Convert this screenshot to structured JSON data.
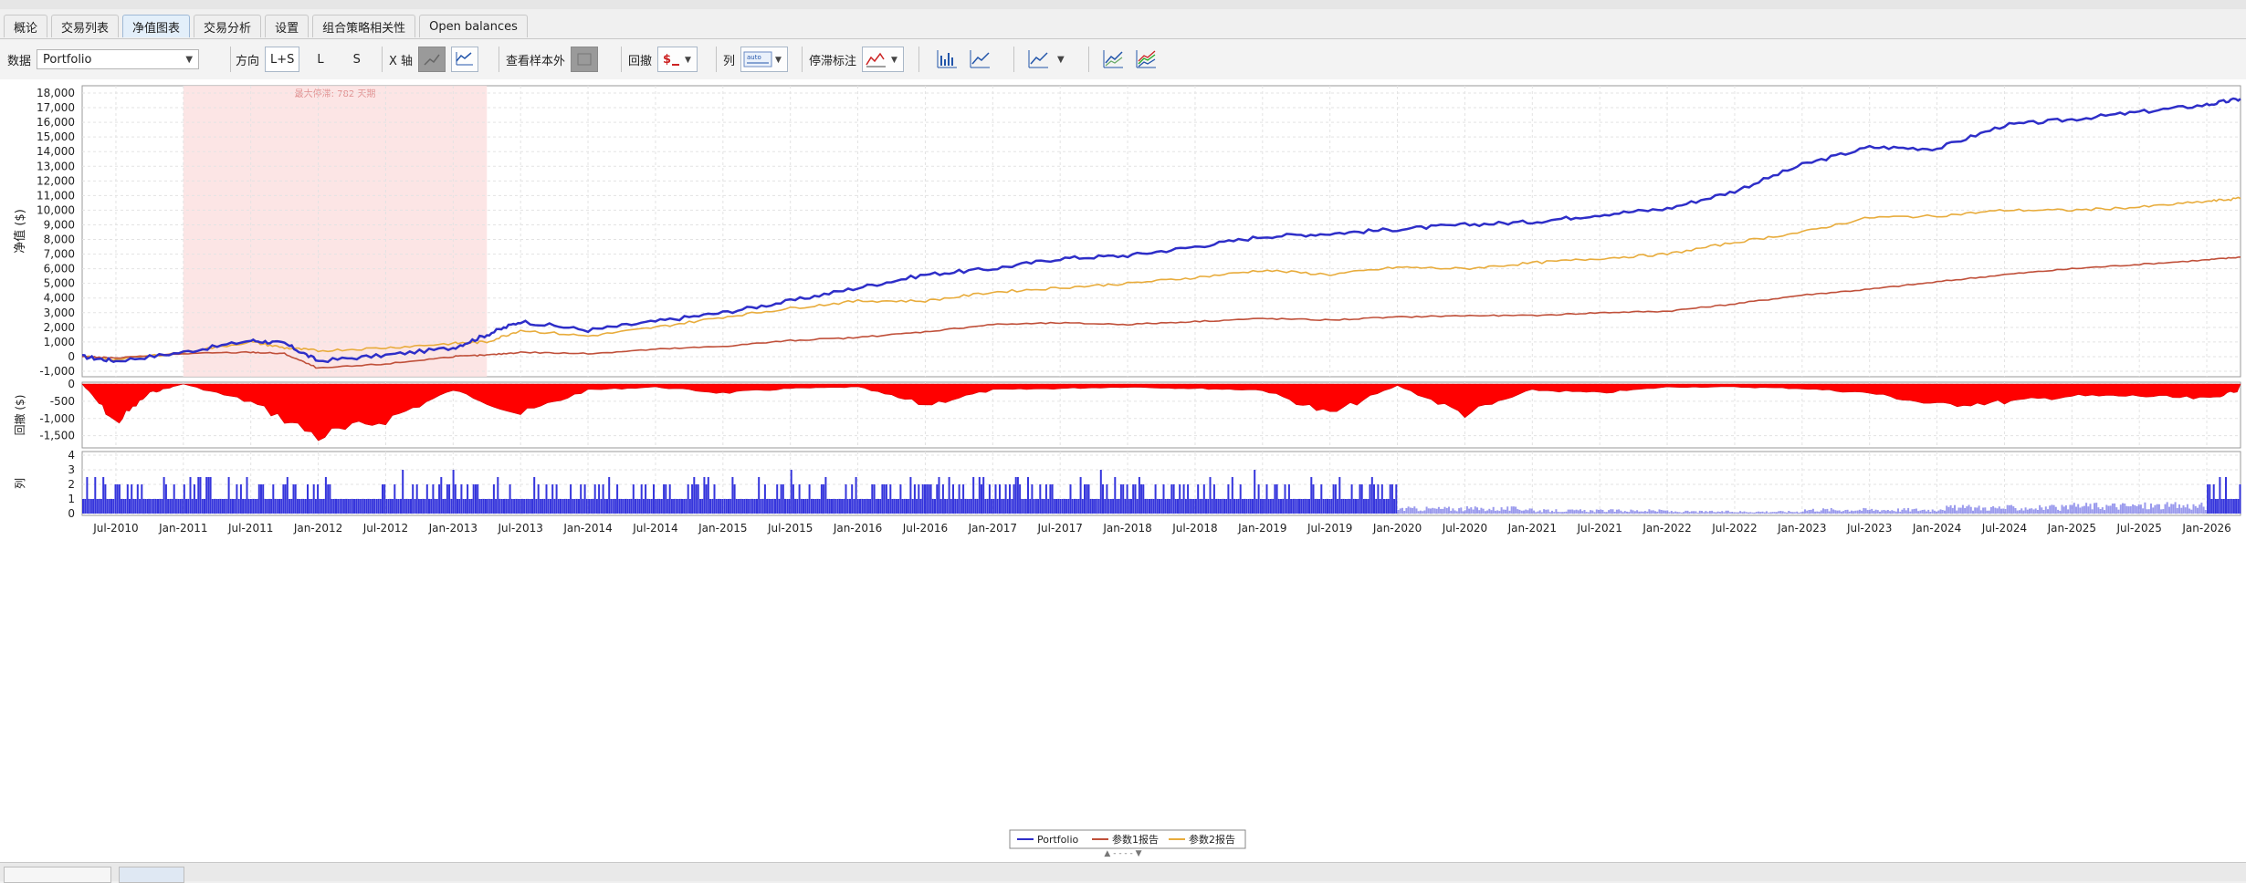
{
  "tabs": [
    {
      "label": "概论",
      "active": false
    },
    {
      "label": "交易列表",
      "active": false
    },
    {
      "label": "净值图表",
      "active": true
    },
    {
      "label": "交易分析",
      "active": false
    },
    {
      "label": "设置",
      "active": false
    },
    {
      "label": "组合策略相关性",
      "active": false
    },
    {
      "label": "Open balances",
      "active": false
    }
  ],
  "toolbar": {
    "data_label": "数据",
    "data_value": "Portfolio",
    "direction_label": "方向",
    "direction_options": [
      "L+S",
      "L",
      "S"
    ],
    "direction_selected": "L+S",
    "xaxis_label": "X 轴",
    "sample_label": "查看样本外",
    "drawdown_label": "回撤",
    "column_label": "列",
    "stop_label": "停滞标注",
    "auto_label": "auto"
  },
  "chart": {
    "colors": {
      "portfolio": "#2e2ec8",
      "report1": "#c0503a",
      "report2": "#e8ac3c",
      "drawdown": "#ff0000",
      "bars": "#1f1fd8",
      "highlight": "#fbe0e0"
    },
    "equity_ylabel": "净值 ($)",
    "drawdown_ylabel": "回撤 ($)",
    "bars_ylabel": "列",
    "highlight_label": "最大停滞: 782 天期",
    "equity_yticks": [
      "18,000",
      "17,000",
      "16,000",
      "15,000",
      "14,000",
      "13,000",
      "12,000",
      "11,000",
      "10,000",
      "9,000",
      "8,000",
      "7,000",
      "6,000",
      "5,000",
      "4,000",
      "3,000",
      "2,000",
      "1,000",
      "0",
      "-1,000"
    ],
    "drawdown_yticks": [
      "0",
      "-500",
      "-1,000",
      "-1,500"
    ],
    "bars_yticks": [
      "4",
      "3",
      "2",
      "1",
      "0"
    ],
    "xticks": [
      "Jul-2010",
      "Jan-2011",
      "Jul-2011",
      "Jan-2012",
      "Jul-2012",
      "Jan-2013",
      "Jul-2013",
      "Jan-2014",
      "Jul-2014",
      "Jan-2015",
      "Jul-2015",
      "Jan-2016",
      "Jul-2016",
      "Jan-2017",
      "Jul-2017",
      "Jan-2018",
      "Jul-2018",
      "Jan-2019",
      "Jul-2019",
      "Jan-2020",
      "Jul-2020",
      "Jan-2021",
      "Jul-2021",
      "Jan-2022",
      "Jul-2022",
      "Jan-2023",
      "Jul-2023",
      "Jan-2024",
      "Jul-2024",
      "Jan-2025",
      "Jul-2025",
      "Jan-2026"
    ],
    "legend": [
      "Portfolio",
      "参数1报告",
      "参数2报告"
    ]
  },
  "chart_data": [
    {
      "type": "line",
      "title": "",
      "ylabel": "净值 ($)",
      "ylim": [
        -1000,
        18000
      ],
      "x": [
        "Apr-2010",
        "Jul-2010",
        "Jan-2011",
        "Jul-2011",
        "Oct-2011",
        "Jan-2012",
        "Jul-2012",
        "Jan-2013",
        "Apr-2013",
        "Jul-2013",
        "Jan-2014",
        "Jul-2014",
        "Jan-2015",
        "Jul-2015",
        "Jan-2016",
        "Jul-2016",
        "Jan-2017",
        "Jul-2017",
        "Jan-2018",
        "Jul-2018",
        "Jan-2019",
        "Jul-2019",
        "Jan-2020",
        "Jul-2020",
        "Jan-2021",
        "Jul-2021",
        "Jan-2022",
        "Jul-2022",
        "Jan-2023",
        "Jul-2023",
        "Jan-2024",
        "Jul-2024",
        "Jan-2025",
        "Jul-2025",
        "Jan-2026",
        "Apr-2026"
      ],
      "series": [
        {
          "name": "Portfolio",
          "values": [
            0,
            -300,
            300,
            1100,
            900,
            -300,
            100,
            600,
            1500,
            2400,
            1800,
            2400,
            3000,
            3800,
            4700,
            5600,
            6000,
            6700,
            6900,
            7500,
            8200,
            8400,
            8700,
            9000,
            9200,
            9700,
            10100,
            11300,
            13100,
            14300,
            14200,
            15800,
            16200,
            16700,
            17200,
            17600
          ]
        },
        {
          "name": "参数1报告",
          "values": [
            0,
            -100,
            200,
            300,
            200,
            -800,
            -500,
            0,
            100,
            300,
            200,
            500,
            700,
            1100,
            1300,
            1700,
            2200,
            2300,
            2200,
            2400,
            2600,
            2500,
            2700,
            2800,
            2800,
            3000,
            3100,
            3600,
            4200,
            4600,
            5100,
            5600,
            6000,
            6300,
            6600,
            6800
          ]
        },
        {
          "name": "参数2报告",
          "values": [
            0,
            -200,
            300,
            1000,
            600,
            400,
            600,
            900,
            1000,
            1800,
            1400,
            2000,
            2700,
            3300,
            3800,
            3800,
            4400,
            4700,
            5000,
            5400,
            5900,
            5600,
            6100,
            6000,
            6400,
            6700,
            7000,
            7800,
            8500,
            9500,
            9600,
            10000,
            10000,
            10200,
            10600,
            10800
          ]
        }
      ]
    },
    {
      "type": "area",
      "ylabel": "回撤 ($)",
      "ylim": [
        -1800,
        0
      ],
      "x": [
        "Apr-2010",
        "Jul-2010",
        "Oct-2010",
        "Jan-2011",
        "Jul-2011",
        "Jan-2012",
        "Jul-2012",
        "Jan-2013",
        "Jul-2013",
        "Jan-2014",
        "Jul-2014",
        "Jan-2015",
        "Jul-2015",
        "Jan-2016",
        "Jul-2016",
        "Jan-2017",
        "Jul-2017",
        "Jan-2018",
        "Jul-2018",
        "Jan-2019",
        "Jul-2019",
        "Jan-2020",
        "Jul-2020",
        "Jan-2021",
        "Jul-2021",
        "Jan-2022",
        "Jul-2022",
        "Jan-2023",
        "Jul-2023",
        "Jan-2024",
        "Jul-2024",
        "Jan-2025",
        "Jul-2025",
        "Jan-2026",
        "Apr-2026"
      ],
      "series": [
        {
          "name": "回撤",
          "values": [
            0,
            -1300,
            -300,
            0,
            -600,
            -1750,
            -1200,
            -200,
            -1000,
            -200,
            -100,
            -300,
            -150,
            -100,
            -700,
            -200,
            -150,
            -100,
            -150,
            -200,
            -1000,
            -50,
            -1000,
            -200,
            -300,
            -100,
            -100,
            -150,
            -300,
            -700,
            -600,
            -400,
            -400,
            -500,
            -200
          ]
        }
      ]
    },
    {
      "type": "bar",
      "ylabel": "列",
      "ylim": [
        0,
        4
      ],
      "x": [
        "2010",
        "2011",
        "2012",
        "2013",
        "2014",
        "2015",
        "2016",
        "2017",
        "2018",
        "2019",
        "2020",
        "2021",
        "2022",
        "2023",
        "2024",
        "2025",
        "2026"
      ],
      "series": [
        {
          "name": "列",
          "values": [
            1,
            1,
            1,
            1,
            1,
            1,
            1,
            1,
            1,
            1,
            0.5,
            0.3,
            0.2,
            0.4,
            0.6,
            0.8,
            1
          ]
        }
      ]
    }
  ]
}
